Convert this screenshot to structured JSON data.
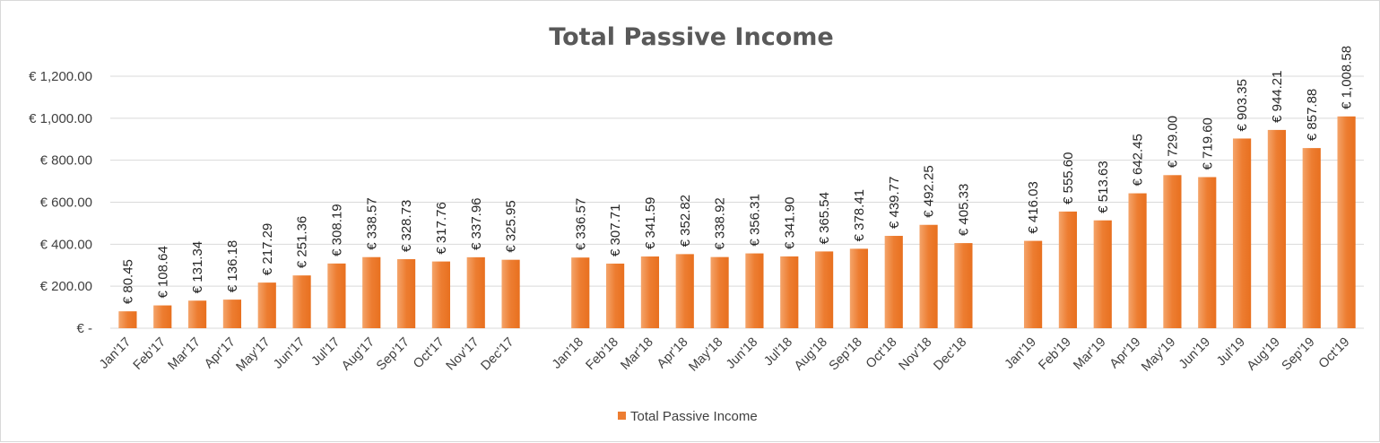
{
  "chart_data": {
    "type": "bar",
    "title": "Total Passive Income",
    "xlabel": "",
    "ylabel": "",
    "ylim": [
      0,
      1200
    ],
    "y_ticks": [
      {
        "value": 0,
        "label": "€ -"
      },
      {
        "value": 200,
        "label": "€ 200.00"
      },
      {
        "value": 400,
        "label": "€ 400.00"
      },
      {
        "value": 600,
        "label": "€ 600.00"
      },
      {
        "value": 800,
        "label": "€ 800.00"
      },
      {
        "value": 1000,
        "label": "€ 1,000.00"
      },
      {
        "value": 1200,
        "label": "€ 1,200.00"
      }
    ],
    "grid": true,
    "legend_position": "bottom",
    "categories": [
      "Jan'17",
      "Feb'17",
      "Mar'17",
      "Apr'17",
      "May'17",
      "Jun'17",
      "Jul'17",
      "Aug'17",
      "Sep'17",
      "Oct'17",
      "Nov'17",
      "Dec'17",
      "",
      "Jan'18",
      "Feb'18",
      "Mar'18",
      "Apr'18",
      "May'18",
      "Jun'18",
      "Jul'18",
      "Aug'18",
      "Sep'18",
      "Oct'18",
      "Nov'18",
      "Dec'18",
      "",
      "Jan'19",
      "Feb'19",
      "Mar'19",
      "Apr'19",
      "May'19",
      "Jun'19",
      "Jul'19",
      "Aug'19",
      "Sep'19",
      "Oct'19"
    ],
    "series": [
      {
        "name": "Total Passive Income",
        "color": "#ed7d31",
        "values": [
          80.45,
          108.64,
          131.34,
          136.18,
          217.29,
          251.36,
          308.19,
          338.57,
          328.73,
          317.76,
          337.96,
          325.95,
          null,
          336.57,
          307.71,
          341.59,
          352.82,
          338.92,
          356.31,
          341.9,
          365.54,
          378.41,
          439.77,
          492.25,
          405.33,
          null,
          416.03,
          555.6,
          513.63,
          642.45,
          729.0,
          719.6,
          903.35,
          944.21,
          857.88,
          1008.58
        ],
        "labels": [
          "€ 80.45",
          "€ 108.64",
          "€ 131.34",
          "€ 136.18",
          "€ 217.29",
          "€ 251.36",
          "€ 308.19",
          "€ 338.57",
          "€ 328.73",
          "€ 317.76",
          "€ 337.96",
          "€ 325.95",
          "",
          "€ 336.57",
          "€ 307.71",
          "€ 341.59",
          "€ 352.82",
          "€ 338.92",
          "€ 356.31",
          "€ 341.90",
          "€ 365.54",
          "€ 378.41",
          "€ 439.77",
          "€ 492.25",
          "€ 405.33",
          "",
          "€ 416.03",
          "€ 555.60",
          "€ 513.63",
          "€ 642.45",
          "€ 729.00",
          "€ 719.60",
          "€ 903.35",
          "€ 944.21",
          "€ 857.88",
          "€ 1,008.58"
        ]
      }
    ],
    "colors": {
      "bar_light": "#f4a46a",
      "bar_dark": "#e8701f",
      "gridline": "#d9d9d9"
    }
  }
}
